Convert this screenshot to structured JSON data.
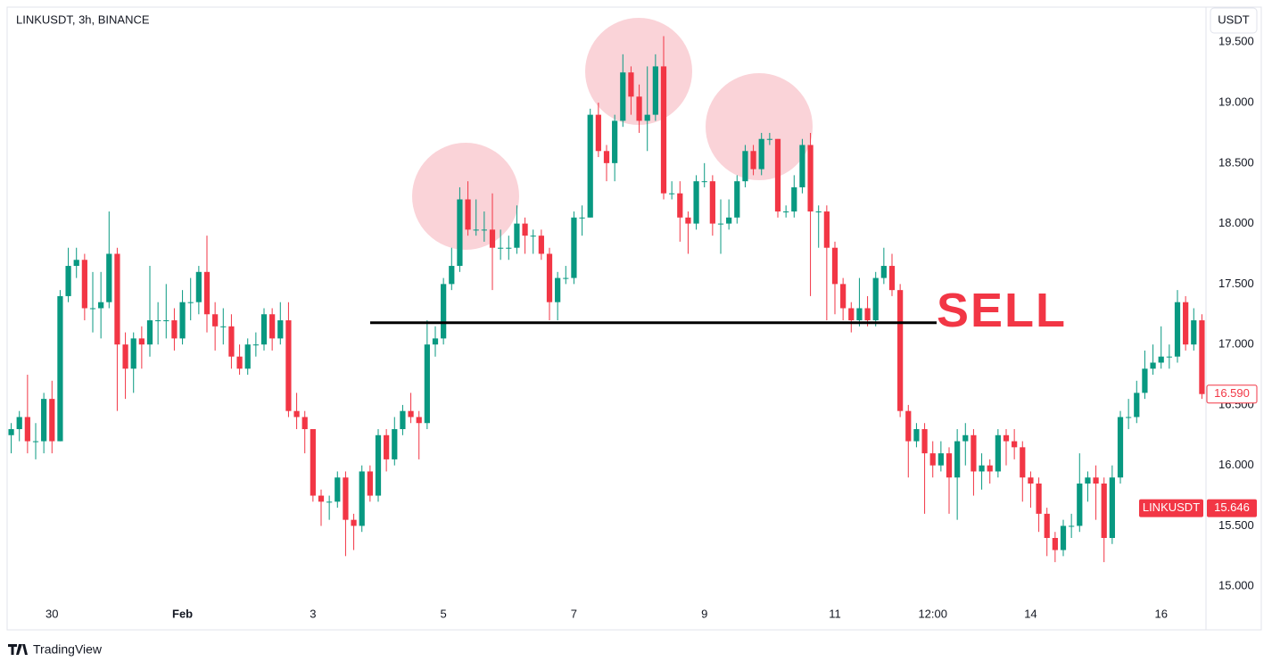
{
  "chart_data": {
    "type": "candlestick",
    "title": "LINKUSDT, 3h, BINANCE",
    "currency": "USDT",
    "brand": "TradingView",
    "up_color": "#089981",
    "down_color": "#f23645",
    "x": [
      0,
      1,
      2,
      3,
      4,
      5,
      6,
      7,
      8,
      9,
      10,
      11,
      12,
      13,
      14,
      15,
      16,
      17,
      18,
      19,
      20,
      21,
      22,
      23,
      24,
      25,
      26,
      27,
      28,
      29,
      30,
      31,
      32,
      33,
      34,
      35,
      36,
      37,
      38,
      39,
      40,
      41,
      42,
      43,
      44,
      45,
      46,
      47,
      48,
      49,
      50,
      51,
      52,
      53,
      54,
      55,
      56,
      57,
      58,
      59,
      60,
      61,
      62,
      63,
      64,
      65,
      66,
      67,
      68,
      69,
      70,
      71,
      72,
      73,
      74,
      75,
      76,
      77,
      78,
      79,
      80,
      81,
      82,
      83,
      84,
      85,
      86,
      87,
      88,
      89,
      90,
      91,
      92,
      93,
      94,
      95,
      96,
      97,
      98,
      99,
      100,
      101,
      102,
      103,
      104,
      105,
      106,
      107,
      108,
      109,
      110,
      111,
      112,
      113,
      114,
      115,
      116,
      117,
      118,
      119,
      120,
      121,
      122,
      123,
      124,
      125,
      126,
      127,
      128,
      129,
      130,
      131,
      132,
      133,
      134,
      135,
      136,
      137,
      138,
      139,
      140,
      141,
      142,
      143,
      144,
      145,
      146
    ],
    "open": [
      16.25,
      16.3,
      16.4,
      16.2,
      16.2,
      16.55,
      16.2,
      17.4,
      17.65,
      17.7,
      17.3,
      17.3,
      17.35,
      17.75,
      17.0,
      16.8,
      17.05,
      17.0,
      17.2,
      17.2,
      17.2,
      17.05,
      17.35,
      17.35,
      17.6,
      17.25,
      17.15,
      17.15,
      16.9,
      16.8,
      17.0,
      17.0,
      17.25,
      17.05,
      17.2,
      16.45,
      16.4,
      16.3,
      15.75,
      15.7,
      15.7,
      15.9,
      15.55,
      15.5,
      15.95,
      15.75,
      16.25,
      16.05,
      16.3,
      16.45,
      16.4,
      16.35,
      17.0,
      17.05,
      17.5,
      17.65,
      18.2,
      17.95,
      17.95,
      17.95,
      17.8,
      17.8,
      17.8,
      18.0,
      17.9,
      17.9,
      17.75,
      17.35,
      17.55,
      17.55,
      18.05,
      18.05,
      18.9,
      18.6,
      18.5,
      18.85,
      19.25,
      19.05,
      18.85,
      18.9,
      19.3,
      18.25,
      18.25,
      18.05,
      18.0,
      18.35,
      18.35,
      18.0,
      18.0,
      18.05,
      18.35,
      18.6,
      18.45,
      18.7,
      18.7,
      18.1,
      18.1,
      18.3,
      18.65,
      18.1,
      18.1,
      17.8,
      17.5,
      17.3,
      17.2,
      17.3,
      17.2,
      17.55,
      17.65,
      17.45,
      16.45,
      16.2,
      16.3,
      16.1,
      16.0,
      16.1,
      15.9,
      16.2,
      16.25,
      15.95,
      16.0,
      15.95,
      16.25,
      16.2,
      16.15,
      15.9,
      15.85,
      15.6,
      15.4,
      15.3,
      15.5,
      15.5,
      15.85,
      15.9,
      15.85,
      15.4,
      15.9,
      16.4,
      16.4,
      16.6,
      16.8,
      16.85,
      16.9,
      16.9,
      17.35,
      17.0,
      17.2
    ],
    "high": [
      16.35,
      16.45,
      16.75,
      16.35,
      16.6,
      16.7,
      17.45,
      17.8,
      17.8,
      17.75,
      17.6,
      17.6,
      18.1,
      17.8,
      17.1,
      17.1,
      17.15,
      17.65,
      17.35,
      17.5,
      17.3,
      17.45,
      17.55,
      17.65,
      17.9,
      17.35,
      17.3,
      17.25,
      17.0,
      17.05,
      17.1,
      17.3,
      17.3,
      17.35,
      17.35,
      16.6,
      16.45,
      16.3,
      15.8,
      15.75,
      15.95,
      15.95,
      15.6,
      16.0,
      16.0,
      16.3,
      16.3,
      16.4,
      16.5,
      16.6,
      16.45,
      17.2,
      17.15,
      17.55,
      17.8,
      18.3,
      18.35,
      18.2,
      18.1,
      18.25,
      17.95,
      17.9,
      18.15,
      18.05,
      17.95,
      17.95,
      17.8,
      17.6,
      17.65,
      18.1,
      18.15,
      18.95,
      19.0,
      18.65,
      18.9,
      19.4,
      19.3,
      19.15,
      19.3,
      19.4,
      19.55,
      18.35,
      18.35,
      18.1,
      18.4,
      18.5,
      18.4,
      18.2,
      18.2,
      18.4,
      18.65,
      18.65,
      18.75,
      18.75,
      18.7,
      18.15,
      18.4,
      18.7,
      18.75,
      18.15,
      18.15,
      17.85,
      17.55,
      17.35,
      17.55,
      17.4,
      17.6,
      17.8,
      17.75,
      17.5,
      16.5,
      16.35,
      16.35,
      16.2,
      16.2,
      16.15,
      16.3,
      16.35,
      16.3,
      16.1,
      16.05,
      16.3,
      16.3,
      16.3,
      16.2,
      15.95,
      15.9,
      15.65,
      15.45,
      15.55,
      15.6,
      16.1,
      15.95,
      16.0,
      15.9,
      16.0,
      16.45,
      16.55,
      16.7,
      16.95,
      17.0,
      17.15,
      17.0,
      17.45,
      17.4,
      17.3,
      17.25
    ],
    "low": [
      16.1,
      16.2,
      16.1,
      16.05,
      16.1,
      16.1,
      16.2,
      17.35,
      17.55,
      17.2,
      17.1,
      17.05,
      17.3,
      16.45,
      16.55,
      16.6,
      16.8,
      16.9,
      17.0,
      17.05,
      16.95,
      17.0,
      17.2,
      17.25,
      17.1,
      16.95,
      17.0,
      16.8,
      16.75,
      16.75,
      16.9,
      16.95,
      16.95,
      17.0,
      16.4,
      16.3,
      16.1,
      15.7,
      15.5,
      15.55,
      15.65,
      15.25,
      15.3,
      15.45,
      15.7,
      15.7,
      15.95,
      16.0,
      16.25,
      16.35,
      16.05,
      16.3,
      16.9,
      17.0,
      17.45,
      17.6,
      17.9,
      17.9,
      17.85,
      17.45,
      17.7,
      17.7,
      17.75,
      17.75,
      17.75,
      17.7,
      17.2,
      17.2,
      17.5,
      17.5,
      17.9,
      18.05,
      18.55,
      18.35,
      18.35,
      18.8,
      18.9,
      18.75,
      18.6,
      18.85,
      18.2,
      18.2,
      17.85,
      17.75,
      17.95,
      18.3,
      17.9,
      17.75,
      17.95,
      18.0,
      18.3,
      18.4,
      18.4,
      18.65,
      18.05,
      18.05,
      18.05,
      18.25,
      17.4,
      17.8,
      17.2,
      17.25,
      17.2,
      17.1,
      17.15,
      17.15,
      17.15,
      17.5,
      17.4,
      16.4,
      15.9,
      16.15,
      15.6,
      15.9,
      15.95,
      15.6,
      15.55,
      16.0,
      15.75,
      15.8,
      15.85,
      15.9,
      16.0,
      16.05,
      15.7,
      15.65,
      15.45,
      15.25,
      15.2,
      15.25,
      15.4,
      15.45,
      15.7,
      15.55,
      15.2,
      15.35,
      15.85,
      16.3,
      16.35,
      16.55,
      16.75,
      16.8,
      16.8,
      16.85,
      16.95,
      16.95,
      16.55
    ],
    "close": [
      16.3,
      16.4,
      16.2,
      16.2,
      16.55,
      16.2,
      17.4,
      17.65,
      17.7,
      17.3,
      17.3,
      17.35,
      17.75,
      17.0,
      16.8,
      17.05,
      17.0,
      17.2,
      17.2,
      17.2,
      17.05,
      17.35,
      17.35,
      17.6,
      17.25,
      17.15,
      17.15,
      16.9,
      16.8,
      17.0,
      17.0,
      17.25,
      17.05,
      17.2,
      16.45,
      16.4,
      16.3,
      15.75,
      15.7,
      15.7,
      15.9,
      15.55,
      15.5,
      15.95,
      15.75,
      16.25,
      16.05,
      16.3,
      16.45,
      16.4,
      16.35,
      17.0,
      17.05,
      17.5,
      17.65,
      18.2,
      17.95,
      17.95,
      17.95,
      17.8,
      17.8,
      17.8,
      18.0,
      17.9,
      17.9,
      17.75,
      17.35,
      17.55,
      17.55,
      18.05,
      18.05,
      18.9,
      18.6,
      18.5,
      18.85,
      19.25,
      19.05,
      18.85,
      18.9,
      19.3,
      18.25,
      18.25,
      18.05,
      18.0,
      18.35,
      18.35,
      18.0,
      18.0,
      18.05,
      18.35,
      18.6,
      18.45,
      18.7,
      18.7,
      18.1,
      18.1,
      18.3,
      18.65,
      18.1,
      18.1,
      17.8,
      17.5,
      17.3,
      17.2,
      17.3,
      17.2,
      17.55,
      17.65,
      17.45,
      16.45,
      16.2,
      16.3,
      16.1,
      16.0,
      16.1,
      15.9,
      16.2,
      16.25,
      15.95,
      16.0,
      15.95,
      16.25,
      16.2,
      16.15,
      15.9,
      15.85,
      15.6,
      15.4,
      15.3,
      15.5,
      15.5,
      15.85,
      15.9,
      15.85,
      15.4,
      15.9,
      16.4,
      16.4,
      16.6,
      16.8,
      16.85,
      16.9,
      16.9,
      17.35,
      17.0,
      17.2,
      16.59
    ],
    "xlim": [
      -0.5,
      146.5
    ],
    "xticks": [
      {
        "value": 5,
        "label": "30"
      },
      {
        "value": 21,
        "label": "Feb"
      },
      {
        "value": 37,
        "label": "3"
      },
      {
        "value": 53,
        "label": "5"
      },
      {
        "value": 69,
        "label": "7"
      },
      {
        "value": 85,
        "label": "9"
      },
      {
        "value": 101,
        "label": "11"
      },
      {
        "value": 113,
        "label": "12:00"
      },
      {
        "value": 125,
        "label": "14"
      },
      {
        "value": 141,
        "label": "16"
      }
    ],
    "ylim": [
      14.64,
      19.79
    ],
    "yticks": [
      {
        "value": 15,
        "label": "15.000"
      },
      {
        "value": 15.5,
        "label": "15.500"
      },
      {
        "value": 16,
        "label": "16.000"
      },
      {
        "value": 16.5,
        "label": "16.500"
      },
      {
        "value": 17,
        "label": "17.000"
      },
      {
        "value": 17.5,
        "label": "17.500"
      },
      {
        "value": 18,
        "label": "18.000"
      },
      {
        "value": 18.5,
        "label": "18.500"
      },
      {
        "value": 19,
        "label": "19.000"
      },
      {
        "value": 19.5,
        "label": "19.500"
      }
    ],
    "sell_label": "SELL",
    "sell_level": 17.18,
    "last_price": {
      "name": "LINKUSDT",
      "value": 15.646
    },
    "price_marker": {
      "value": 16.59,
      "label": "16.590"
    }
  }
}
